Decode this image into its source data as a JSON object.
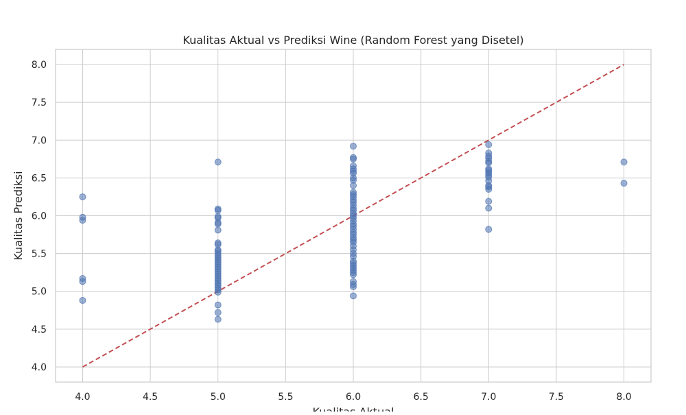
{
  "chart_data": {
    "type": "scatter",
    "title": "Kualitas Aktual vs Prediksi Wine (Random Forest yang Disetel)",
    "xlabel": "Kualitas Aktual",
    "ylabel": "Kualitas Prediksi",
    "xlim": [
      3.8,
      8.2
    ],
    "ylim": [
      3.8,
      8.2
    ],
    "x_ticks": [
      "4.0",
      "4.5",
      "5.0",
      "5.5",
      "6.0",
      "6.5",
      "7.0",
      "7.5",
      "8.0"
    ],
    "y_ticks": [
      "4.0",
      "4.5",
      "5.0",
      "5.5",
      "6.0",
      "6.5",
      "7.0",
      "7.5",
      "8.0"
    ],
    "grid": true,
    "point_color": "#4c72b0",
    "reference_line_color": "#c44e52",
    "reference_line": {
      "x": [
        4.0,
        8.0
      ],
      "y": [
        4.0,
        8.0
      ],
      "style": "dashed"
    },
    "points": [
      [
        4.0,
        6.25
      ],
      [
        4.0,
        5.98
      ],
      [
        4.0,
        5.94
      ],
      [
        4.0,
        5.17
      ],
      [
        4.0,
        5.13
      ],
      [
        4.0,
        4.88
      ],
      [
        5.0,
        6.71
      ],
      [
        5.0,
        6.09
      ],
      [
        5.0,
        6.07
      ],
      [
        5.0,
        5.99
      ],
      [
        5.0,
        5.97
      ],
      [
        5.0,
        5.91
      ],
      [
        5.0,
        5.89
      ],
      [
        5.0,
        5.81
      ],
      [
        5.0,
        5.64
      ],
      [
        5.0,
        5.62
      ],
      [
        5.0,
        5.55
      ],
      [
        5.0,
        5.53
      ],
      [
        5.0,
        5.5
      ],
      [
        5.0,
        5.47
      ],
      [
        5.0,
        5.44
      ],
      [
        5.0,
        5.41
      ],
      [
        5.0,
        5.38
      ],
      [
        5.0,
        5.35
      ],
      [
        5.0,
        5.32
      ],
      [
        5.0,
        5.29
      ],
      [
        5.0,
        5.26
      ],
      [
        5.0,
        5.23
      ],
      [
        5.0,
        5.2
      ],
      [
        5.0,
        5.17
      ],
      [
        5.0,
        5.14
      ],
      [
        5.0,
        5.11
      ],
      [
        5.0,
        5.08
      ],
      [
        5.0,
        5.05
      ],
      [
        5.0,
        5.02
      ],
      [
        5.0,
        4.99
      ],
      [
        5.0,
        4.82
      ],
      [
        5.0,
        4.72
      ],
      [
        5.0,
        4.63
      ],
      [
        6.0,
        6.92
      ],
      [
        6.0,
        6.77
      ],
      [
        6.0,
        6.75
      ],
      [
        6.0,
        6.66
      ],
      [
        6.0,
        6.62
      ],
      [
        6.0,
        6.59
      ],
      [
        6.0,
        6.56
      ],
      [
        6.0,
        6.5
      ],
      [
        6.0,
        6.47
      ],
      [
        6.0,
        6.4
      ],
      [
        6.0,
        6.31
      ],
      [
        6.0,
        6.28
      ],
      [
        6.0,
        6.25
      ],
      [
        6.0,
        6.21
      ],
      [
        6.0,
        6.18
      ],
      [
        6.0,
        6.14
      ],
      [
        6.0,
        6.1
      ],
      [
        6.0,
        6.07
      ],
      [
        6.0,
        6.03
      ],
      [
        6.0,
        6.0
      ],
      [
        6.0,
        5.97
      ],
      [
        6.0,
        5.93
      ],
      [
        6.0,
        5.89
      ],
      [
        6.0,
        5.86
      ],
      [
        6.0,
        5.82
      ],
      [
        6.0,
        5.78
      ],
      [
        6.0,
        5.75
      ],
      [
        6.0,
        5.71
      ],
      [
        6.0,
        5.68
      ],
      [
        6.0,
        5.65
      ],
      [
        6.0,
        5.6
      ],
      [
        6.0,
        5.55
      ],
      [
        6.0,
        5.5
      ],
      [
        6.0,
        5.46
      ],
      [
        6.0,
        5.4
      ],
      [
        6.0,
        5.37
      ],
      [
        6.0,
        5.34
      ],
      [
        6.0,
        5.31
      ],
      [
        6.0,
        5.28
      ],
      [
        6.0,
        5.25
      ],
      [
        6.0,
        5.22
      ],
      [
        6.0,
        5.13
      ],
      [
        6.0,
        5.09
      ],
      [
        6.0,
        5.06
      ],
      [
        6.0,
        4.94
      ],
      [
        7.0,
        6.94
      ],
      [
        7.0,
        6.83
      ],
      [
        7.0,
        6.79
      ],
      [
        7.0,
        6.76
      ],
      [
        7.0,
        6.72
      ],
      [
        7.0,
        6.7
      ],
      [
        7.0,
        6.62
      ],
      [
        7.0,
        6.6
      ],
      [
        7.0,
        6.57
      ],
      [
        7.0,
        6.54
      ],
      [
        7.0,
        6.51
      ],
      [
        7.0,
        6.46
      ],
      [
        7.0,
        6.4
      ],
      [
        7.0,
        6.38
      ],
      [
        7.0,
        6.35
      ],
      [
        7.0,
        6.19
      ],
      [
        7.0,
        6.1
      ],
      [
        7.0,
        5.82
      ],
      [
        8.0,
        6.71
      ],
      [
        8.0,
        6.43
      ]
    ]
  }
}
